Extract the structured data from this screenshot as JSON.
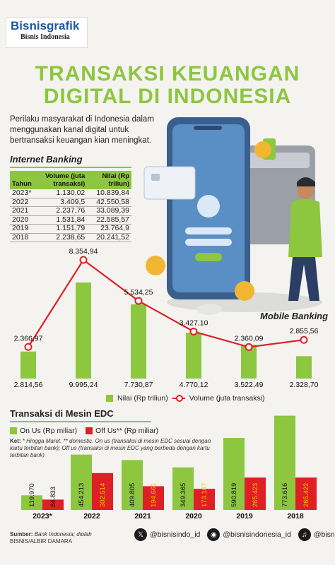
{
  "header": {
    "logo_main": "Bisnisgrafik",
    "logo_sub": "Bisnis Indonesia",
    "title_line1": "TRANSAKSI KEUANGAN",
    "title_line2": "DIGITAL DI INDONESIA",
    "intro": "Perilaku masyarakat di Indonesia dalam menggunakan kanal digital untuk bertransaksi keuangan kian meningkat."
  },
  "internet_banking": {
    "heading": "Internet Banking",
    "columns": [
      "Tahun",
      "Volume (juta transaksi)",
      "Nilai (Rp triliun)"
    ],
    "rows": [
      [
        "2023*",
        "1.130,02",
        "10.839,84"
      ],
      [
        "2022",
        "3.409,5",
        "42.550,58"
      ],
      [
        "2021",
        "2.237,76",
        "33.089,39"
      ],
      [
        "2020",
        "1.531,84",
        "22.585,57"
      ],
      [
        "2019",
        "1.151,79",
        "23.764,9"
      ],
      [
        "2018",
        "2.238,65",
        "20.241,52"
      ]
    ]
  },
  "mobile_banking_label": "Mobile Banking",
  "colors": {
    "green": "#8dc63f",
    "red": "#e01e26",
    "title_green": "#8dc63f"
  },
  "chart_data": [
    {
      "type": "bar+line",
      "title": "Mobile Banking",
      "categories": [
        "2023*",
        "2022",
        "2021",
        "2020",
        "2019",
        "2018"
      ],
      "series": [
        {
          "name": "Nilai (Rp triliun)",
          "kind": "bar",
          "values": [
            2814.56,
            9995.24,
            7730.87,
            4770.12,
            3522.49,
            2328.7
          ],
          "labels": [
            "2.814,56",
            "9.995,24",
            "7.730,87",
            "4.770,12",
            "3.522,49",
            "2.328,70"
          ]
        },
        {
          "name": "Volume (juta transaksi)",
          "kind": "line",
          "values": [
            2366.97,
            8354.94,
            5534.25,
            3427.1,
            2360.09,
            2855.56
          ],
          "labels": [
            "2.366,97",
            "8.354,94",
            "5.534,25",
            "3.427,10",
            "2.360,09",
            "2.855,56"
          ]
        }
      ]
    },
    {
      "type": "bar",
      "title": "Transaksi di Mesin EDC",
      "categories": [
        "2023*",
        "2022",
        "2021",
        "2020",
        "2019",
        "2018"
      ],
      "series": [
        {
          "name": "On Us (Rp miliar)",
          "values": [
            119970,
            454213,
            409805,
            349365,
            590819,
            773616
          ],
          "labels": [
            "119.970",
            "454.213",
            "409.805",
            "349.365",
            "590.819",
            "773.616"
          ]
        },
        {
          "name": "Off Us** (Rp miliar)",
          "values": [
            84833,
            302514,
            194661,
            173167,
            265423,
            265422
          ],
          "labels": [
            "84.833",
            "302.514",
            "194.661",
            "173.167",
            "265.423",
            "265.422"
          ]
        }
      ]
    }
  ],
  "legend1": {
    "bar": "Nilai (Rp triliun)",
    "line": "Volume (juta transaksi)"
  },
  "edc": {
    "heading": "Transaksi di Mesin EDC",
    "legend_on": "On Us (Rp miliar)",
    "legend_off": "Off Us** (Rp miliar)",
    "ket_label": "Ket:",
    "ket_text": "* Hingga Maret. ** domestic. On us (transaksi di mesin EDC sesuai dengan kartu terbitan bank); Off us (transaksi di mesin EDC yang berbeda dengan kartu terbitan bank)"
  },
  "footer": {
    "source_label": "Sumber:",
    "source_text": "Bank Indonesia; diolah",
    "credit": "BISNIS/ALBIR DAMARA",
    "handle_twitter": "@bisnisindo_id",
    "handle_instagram": "@bisnisindonesia_id",
    "handle_tiktok": "@bisnis.indonesia"
  }
}
